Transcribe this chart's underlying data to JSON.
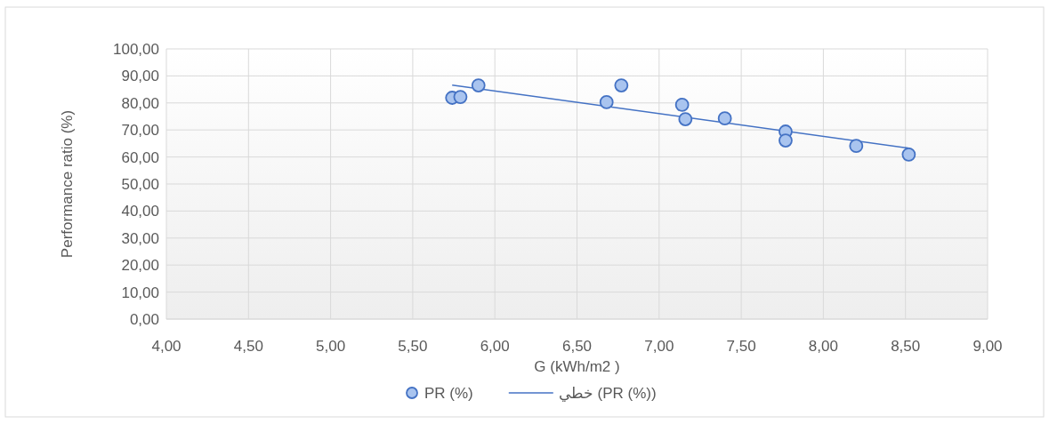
{
  "chart_data": {
    "type": "scatter",
    "xlabel": "G (kWh/m2 )",
    "ylabel": "Performance ratio (%)",
    "xlim": [
      4,
      9
    ],
    "ylim": [
      0,
      100
    ],
    "xticks": [
      {
        "value": 4,
        "label": "4,00"
      },
      {
        "value": 4.5,
        "label": "4,50"
      },
      {
        "value": 5,
        "label": "5,00"
      },
      {
        "value": 5.5,
        "label": "5,50"
      },
      {
        "value": 6,
        "label": "6,00"
      },
      {
        "value": 6.5,
        "label": "6,50"
      },
      {
        "value": 7,
        "label": "7,00"
      },
      {
        "value": 7.5,
        "label": "7,50"
      },
      {
        "value": 8,
        "label": "8,00"
      },
      {
        "value": 8.5,
        "label": "8,50"
      },
      {
        "value": 9,
        "label": "9,00"
      }
    ],
    "yticks": [
      {
        "value": 0,
        "label": "0,00"
      },
      {
        "value": 10,
        "label": "10,00"
      },
      {
        "value": 20,
        "label": "20,00"
      },
      {
        "value": 30,
        "label": "30,00"
      },
      {
        "value": 40,
        "label": "40,00"
      },
      {
        "value": 50,
        "label": "50,00"
      },
      {
        "value": 60,
        "label": "60,00"
      },
      {
        "value": 70,
        "label": "70,00"
      },
      {
        "value": 80,
        "label": "80,00"
      },
      {
        "value": 90,
        "label": "90,00"
      },
      {
        "value": 100,
        "label": "100,00"
      }
    ],
    "grid": true,
    "legend": "bottom",
    "series": [
      {
        "name": "PR (%)",
        "marker": "circle",
        "color": "#a9c4ef",
        "x": [
          5.74,
          5.79,
          5.9,
          6.68,
          6.77,
          7.14,
          7.16,
          7.4,
          7.77,
          7.77,
          8.2,
          8.52
        ],
        "values": [
          81.9,
          82.2,
          86.5,
          80.3,
          86.5,
          79.3,
          74.0,
          74.3,
          69.4,
          66.1,
          64.1,
          60.9
        ]
      },
      {
        "name": "خطي (PR (%))",
        "type": "line",
        "color": "#4472c4",
        "line_style": "solid",
        "marker": "none",
        "x": [
          5.74,
          8.53
        ],
        "values": [
          86.6,
          63.2
        ]
      }
    ]
  }
}
